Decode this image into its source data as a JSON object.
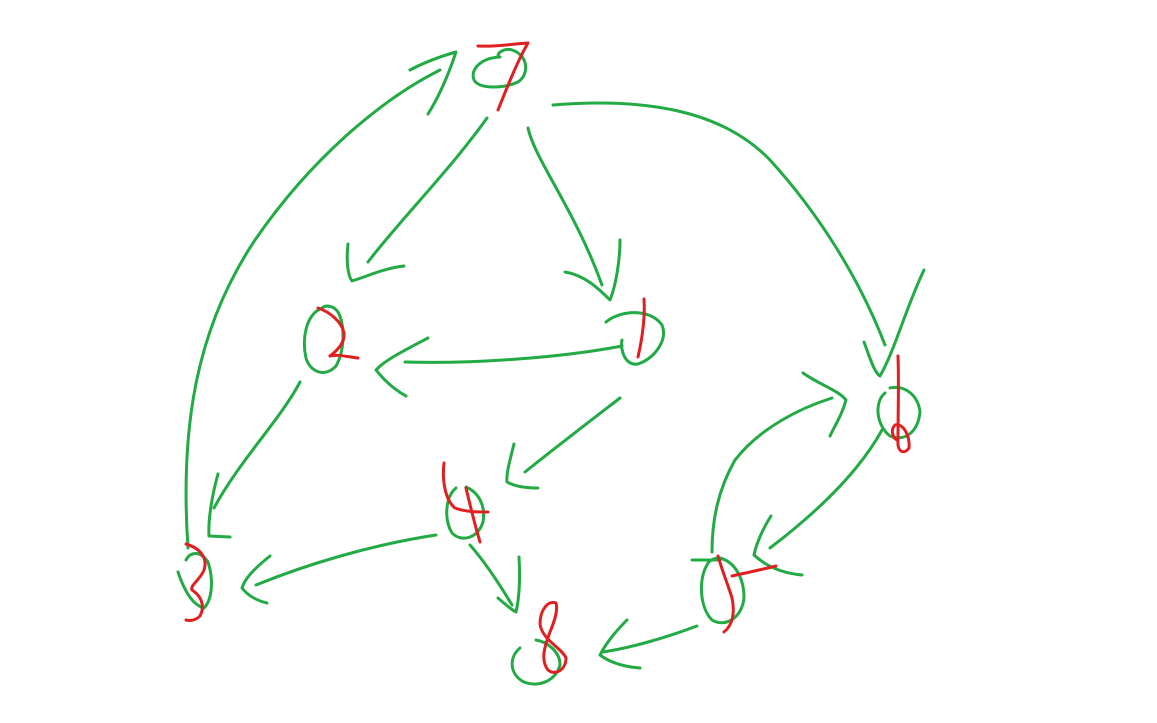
{
  "diagram": {
    "kind": "hand-drawn directed graph",
    "colors": {
      "edge": "#22aa44",
      "node_circle": "#22aa44",
      "node_label": "#e02020",
      "background": "#ffffff"
    },
    "nodes": [
      {
        "id": "7",
        "label": "7"
      },
      {
        "id": "2",
        "label": "2"
      },
      {
        "id": "1",
        "label": "1"
      },
      {
        "id": "0",
        "label": "0"
      },
      {
        "id": "4",
        "label": "4"
      },
      {
        "id": "5",
        "label": "5"
      },
      {
        "id": "3",
        "label": "3"
      },
      {
        "id": "8",
        "label": "8"
      }
    ],
    "edges": [
      {
        "from": "3",
        "to": "7"
      },
      {
        "from": "7",
        "to": "2"
      },
      {
        "from": "7",
        "to": "1"
      },
      {
        "from": "7",
        "to": "0"
      },
      {
        "from": "1",
        "to": "2"
      },
      {
        "from": "2",
        "to": "3"
      },
      {
        "from": "1",
        "to": "4"
      },
      {
        "from": "4",
        "to": "3"
      },
      {
        "from": "4",
        "to": "8"
      },
      {
        "from": "5",
        "to": "0"
      },
      {
        "from": "0",
        "to": "5"
      },
      {
        "from": "5",
        "to": "8"
      }
    ]
  }
}
